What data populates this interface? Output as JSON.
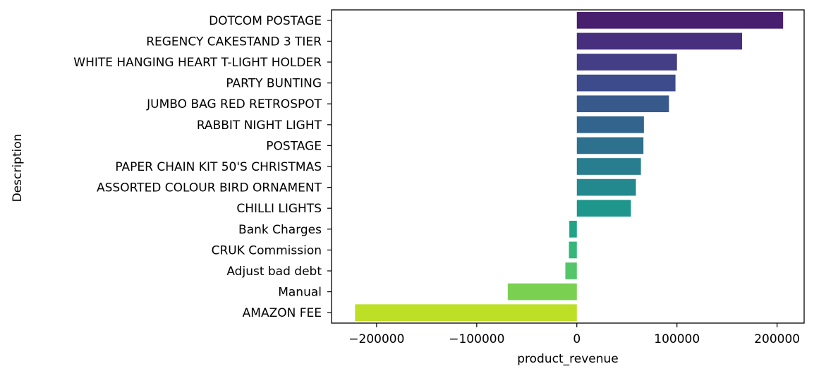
{
  "chart_data": {
    "type": "bar",
    "orientation": "horizontal",
    "xlabel": "product_revenue",
    "ylabel": "Description",
    "xlim": [
      -245000,
      227000
    ],
    "xticks": [
      -200000,
      -100000,
      0,
      100000,
      200000
    ],
    "xtick_labels": [
      "−200000",
      "−100000",
      "0",
      "100000",
      "200000"
    ],
    "grid": false,
    "categories": [
      "DOTCOM POSTAGE",
      "REGENCY CAKESTAND 3 TIER",
      "WHITE HANGING HEART T-LIGHT HOLDER",
      "PARTY BUNTING",
      "JUMBO BAG RED RETROSPOT",
      "RABBIT NIGHT LIGHT",
      "POSTAGE",
      "PAPER CHAIN KIT 50'S CHRISTMAS ",
      "ASSORTED COLOUR BIRD ORNAMENT",
      "CHILLI LIGHTS",
      "Bank Charges",
      "CRUK Commission",
      "Adjust bad debt",
      "Manual",
      "AMAZON FEE"
    ],
    "values": [
      206000,
      165000,
      100000,
      98500,
      92000,
      67000,
      66500,
      64000,
      59000,
      54000,
      -7500,
      -7900,
      -11500,
      -69000,
      -221500
    ],
    "colors": [
      "#481f6f",
      "#472f7e",
      "#433e85",
      "#3e4b8a",
      "#38598c",
      "#32658e",
      "#2d718e",
      "#287d8e",
      "#23898e",
      "#1f968b",
      "#20a386",
      "#35b779",
      "#54c568",
      "#7ad151",
      "#bddf26"
    ]
  }
}
